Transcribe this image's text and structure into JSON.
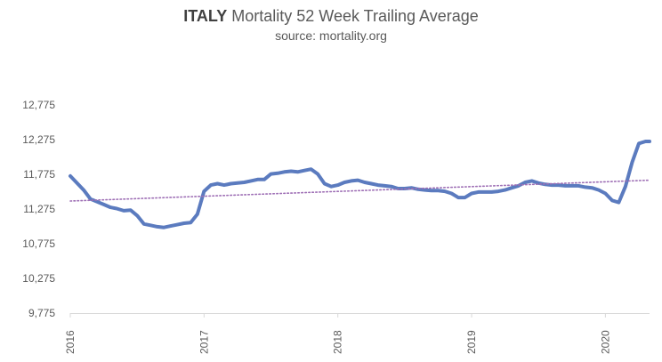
{
  "chart_data": {
    "type": "line",
    "title_bold": "ITALY",
    "title_rest": "Mortality 52 Week Trailing Average",
    "subtitle": "source: mortality.org",
    "xlabel": "",
    "ylabel": "",
    "ylim": [
      9775,
      12775
    ],
    "y_ticks": [
      "12,775",
      "12,275",
      "11,775",
      "11,275",
      "10,775",
      "10,275",
      "9,775"
    ],
    "y_tick_values": [
      12775,
      12275,
      11775,
      11275,
      10775,
      10275,
      9775
    ],
    "x_ticks": [
      "2016",
      "2017",
      "2018",
      "2019",
      "2020"
    ],
    "x_tick_values": [
      2016,
      2017,
      2018,
      2019,
      2020
    ],
    "xlim": [
      2016,
      2020.33
    ],
    "grid": false,
    "series": [
      {
        "name": "",
        "style": "solid",
        "color": "#5b7bbf",
        "x": [
          2016.0,
          2016.05,
          2016.1,
          2016.15,
          2016.2,
          2016.25,
          2016.3,
          2016.35,
          2016.4,
          2016.45,
          2016.5,
          2016.55,
          2016.6,
          2016.65,
          2016.7,
          2016.75,
          2016.8,
          2016.85,
          2016.9,
          2016.95,
          2017.0,
          2017.05,
          2017.1,
          2017.15,
          2017.2,
          2017.25,
          2017.3,
          2017.35,
          2017.4,
          2017.45,
          2017.5,
          2017.55,
          2017.6,
          2017.65,
          2017.7,
          2017.75,
          2017.8,
          2017.85,
          2017.9,
          2017.95,
          2018.0,
          2018.05,
          2018.1,
          2018.15,
          2018.2,
          2018.25,
          2018.3,
          2018.35,
          2018.4,
          2018.45,
          2018.5,
          2018.55,
          2018.6,
          2018.65,
          2018.7,
          2018.75,
          2018.8,
          2018.85,
          2018.9,
          2018.95,
          2019.0,
          2019.05,
          2019.1,
          2019.15,
          2019.2,
          2019.25,
          2019.3,
          2019.35,
          2019.4,
          2019.45,
          2019.5,
          2019.55,
          2019.6,
          2019.65,
          2019.7,
          2019.75,
          2019.8,
          2019.85,
          2019.9,
          2019.95,
          2020.0,
          2020.05,
          2020.1,
          2020.15,
          2020.2,
          2020.25,
          2020.3,
          2020.33
        ],
        "values": [
          11750,
          11650,
          11550,
          11420,
          11380,
          11340,
          11300,
          11280,
          11250,
          11260,
          11180,
          11060,
          11040,
          11020,
          11010,
          11030,
          11050,
          11070,
          11080,
          11200,
          11530,
          11620,
          11640,
          11620,
          11640,
          11650,
          11660,
          11680,
          11700,
          11700,
          11780,
          11790,
          11810,
          11820,
          11810,
          11830,
          11850,
          11780,
          11640,
          11600,
          11620,
          11660,
          11680,
          11690,
          11660,
          11640,
          11620,
          11610,
          11600,
          11570,
          11570,
          11580,
          11560,
          11550,
          11540,
          11540,
          11530,
          11500,
          11440,
          11440,
          11500,
          11520,
          11520,
          11520,
          11530,
          11550,
          11580,
          11610,
          11660,
          11680,
          11650,
          11630,
          11620,
          11620,
          11610,
          11610,
          11610,
          11590,
          11580,
          11550,
          11500,
          11400,
          11370,
          11600,
          11950,
          12220,
          12250,
          12250
        ]
      },
      {
        "name": "",
        "style": "dotted",
        "color": "#9e6fb5",
        "x": [
          2016.0,
          2020.33
        ],
        "values": [
          11390,
          11690
        ]
      }
    ]
  }
}
